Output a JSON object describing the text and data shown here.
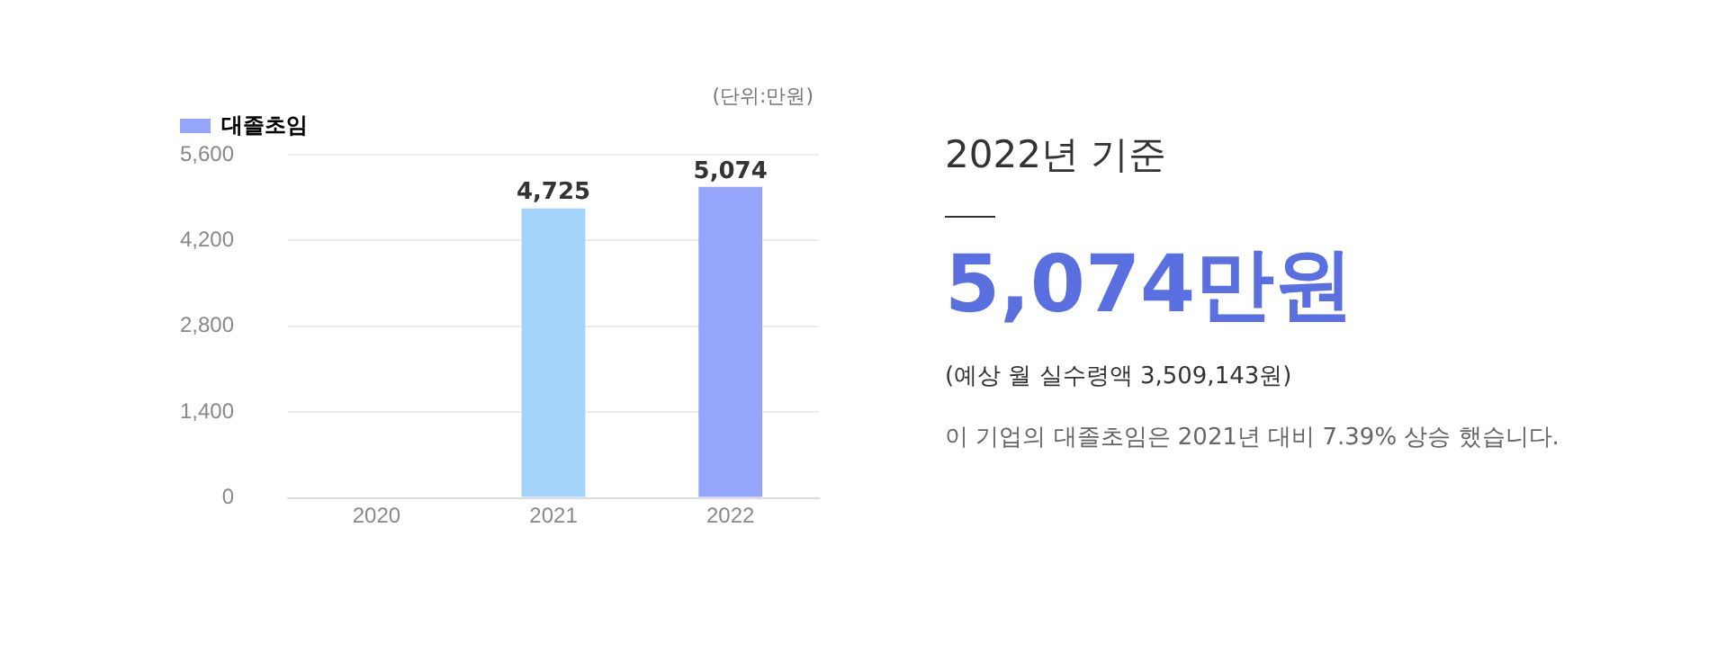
{
  "chart_data": [
    {
      "type": "bar",
      "categories": [
        "2020",
        "2021",
        "2022"
      ],
      "series": [
        {
          "name": "대졸초임",
          "color": "#94a5fb",
          "colors": [
            "#94a5fb",
            "#a4d4fc",
            "#94a5fb"
          ],
          "values": [
            null,
            4725,
            5074
          ],
          "value_labels": [
            null,
            "4,725",
            "5,074"
          ]
        }
      ],
      "ylim": [
        0,
        5600
      ],
      "yticks": [
        0,
        {
          "value": 1400,
          "label": "1,400"
        },
        {
          "value": 2800,
          "label": "2,800"
        },
        {
          "value": 4200,
          "label": "4,200"
        },
        {
          "value": 5600,
          "label": "5,600"
        }
      ],
      "grid": "y",
      "legend": "top left",
      "annotations": [
        "(단위:만원)"
      ]
    },
    {
      "type": "other",
      "title": "2022년 기준",
      "annotations": [
        "5,074만원",
        "(예상 월 실수령액 3,509,143원)",
        "이 기업의 대졸초임은 2021년 대비 7.39% 상승 했습니다."
      ]
    }
  ]
}
